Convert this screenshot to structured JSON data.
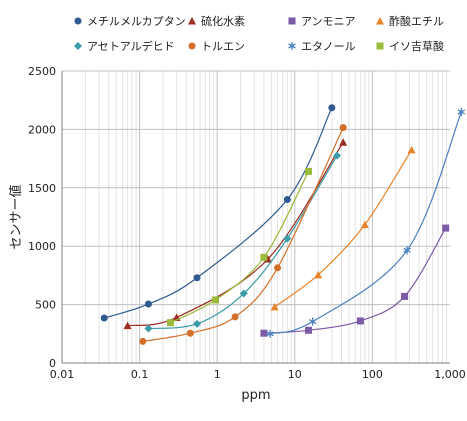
{
  "chart_data": {
    "type": "scatter",
    "xlabel": "ppm",
    "ylabel": "センサー値",
    "xscale": "log",
    "xlim": [
      0.01,
      1000
    ],
    "ylim": [
      0,
      2500
    ],
    "grid": true,
    "legend_position": "top",
    "x_tick_labels": [
      "0.01",
      "0.1",
      "1",
      "10",
      "100",
      "1,000"
    ],
    "y_tick_labels": [
      "0",
      "500",
      "1000",
      "1500",
      "2000",
      "2500"
    ],
    "series": [
      {
        "name": "メチルメルカプタン",
        "color": "#2e5a8f",
        "marker": "circle",
        "x": [
          0.035,
          0.13,
          0.55,
          8,
          30
        ],
        "y": [
          385,
          505,
          730,
          1400,
          2185
        ]
      },
      {
        "name": "硫化水素",
        "color": "#9c2b22",
        "marker": "triangle",
        "x": [
          0.07,
          0.3,
          4.5,
          42
        ],
        "y": [
          320,
          390,
          890,
          1890
        ]
      },
      {
        "name": "アンモニア",
        "color": "#7b5aa6",
        "marker": "square",
        "x": [
          4,
          15,
          70,
          260,
          880
        ],
        "y": [
          255,
          280,
          360,
          570,
          1155
        ]
      },
      {
        "name": "酢酸エチル",
        "color": "#e8842a",
        "marker": "triangle",
        "x": [
          5.5,
          20,
          80,
          320
        ],
        "y": [
          480,
          755,
          1185,
          1825
        ]
      },
      {
        "name": "アセトアルデヒド",
        "color": "#3a9ca8",
        "marker": "diamond",
        "x": [
          0.13,
          0.55,
          2.2,
          8,
          35
        ],
        "y": [
          295,
          335,
          595,
          1065,
          1775
        ]
      },
      {
        "name": "トルエン",
        "color": "#d46f2a",
        "marker": "circle",
        "x": [
          0.11,
          0.45,
          1.7,
          6,
          42
        ],
        "y": [
          185,
          255,
          395,
          815,
          2015
        ]
      },
      {
        "name": "エタノール",
        "color": "#4a80c0",
        "marker": "star",
        "x": [
          4.8,
          17,
          280,
          1400
        ],
        "y": [
          250,
          355,
          965,
          2150
        ]
      },
      {
        "name": "イソ吉草酸",
        "color": "#9bbb3b",
        "marker": "square",
        "x": [
          0.25,
          0.95,
          4,
          15
        ],
        "y": [
          345,
          540,
          905,
          1640
        ]
      }
    ]
  }
}
